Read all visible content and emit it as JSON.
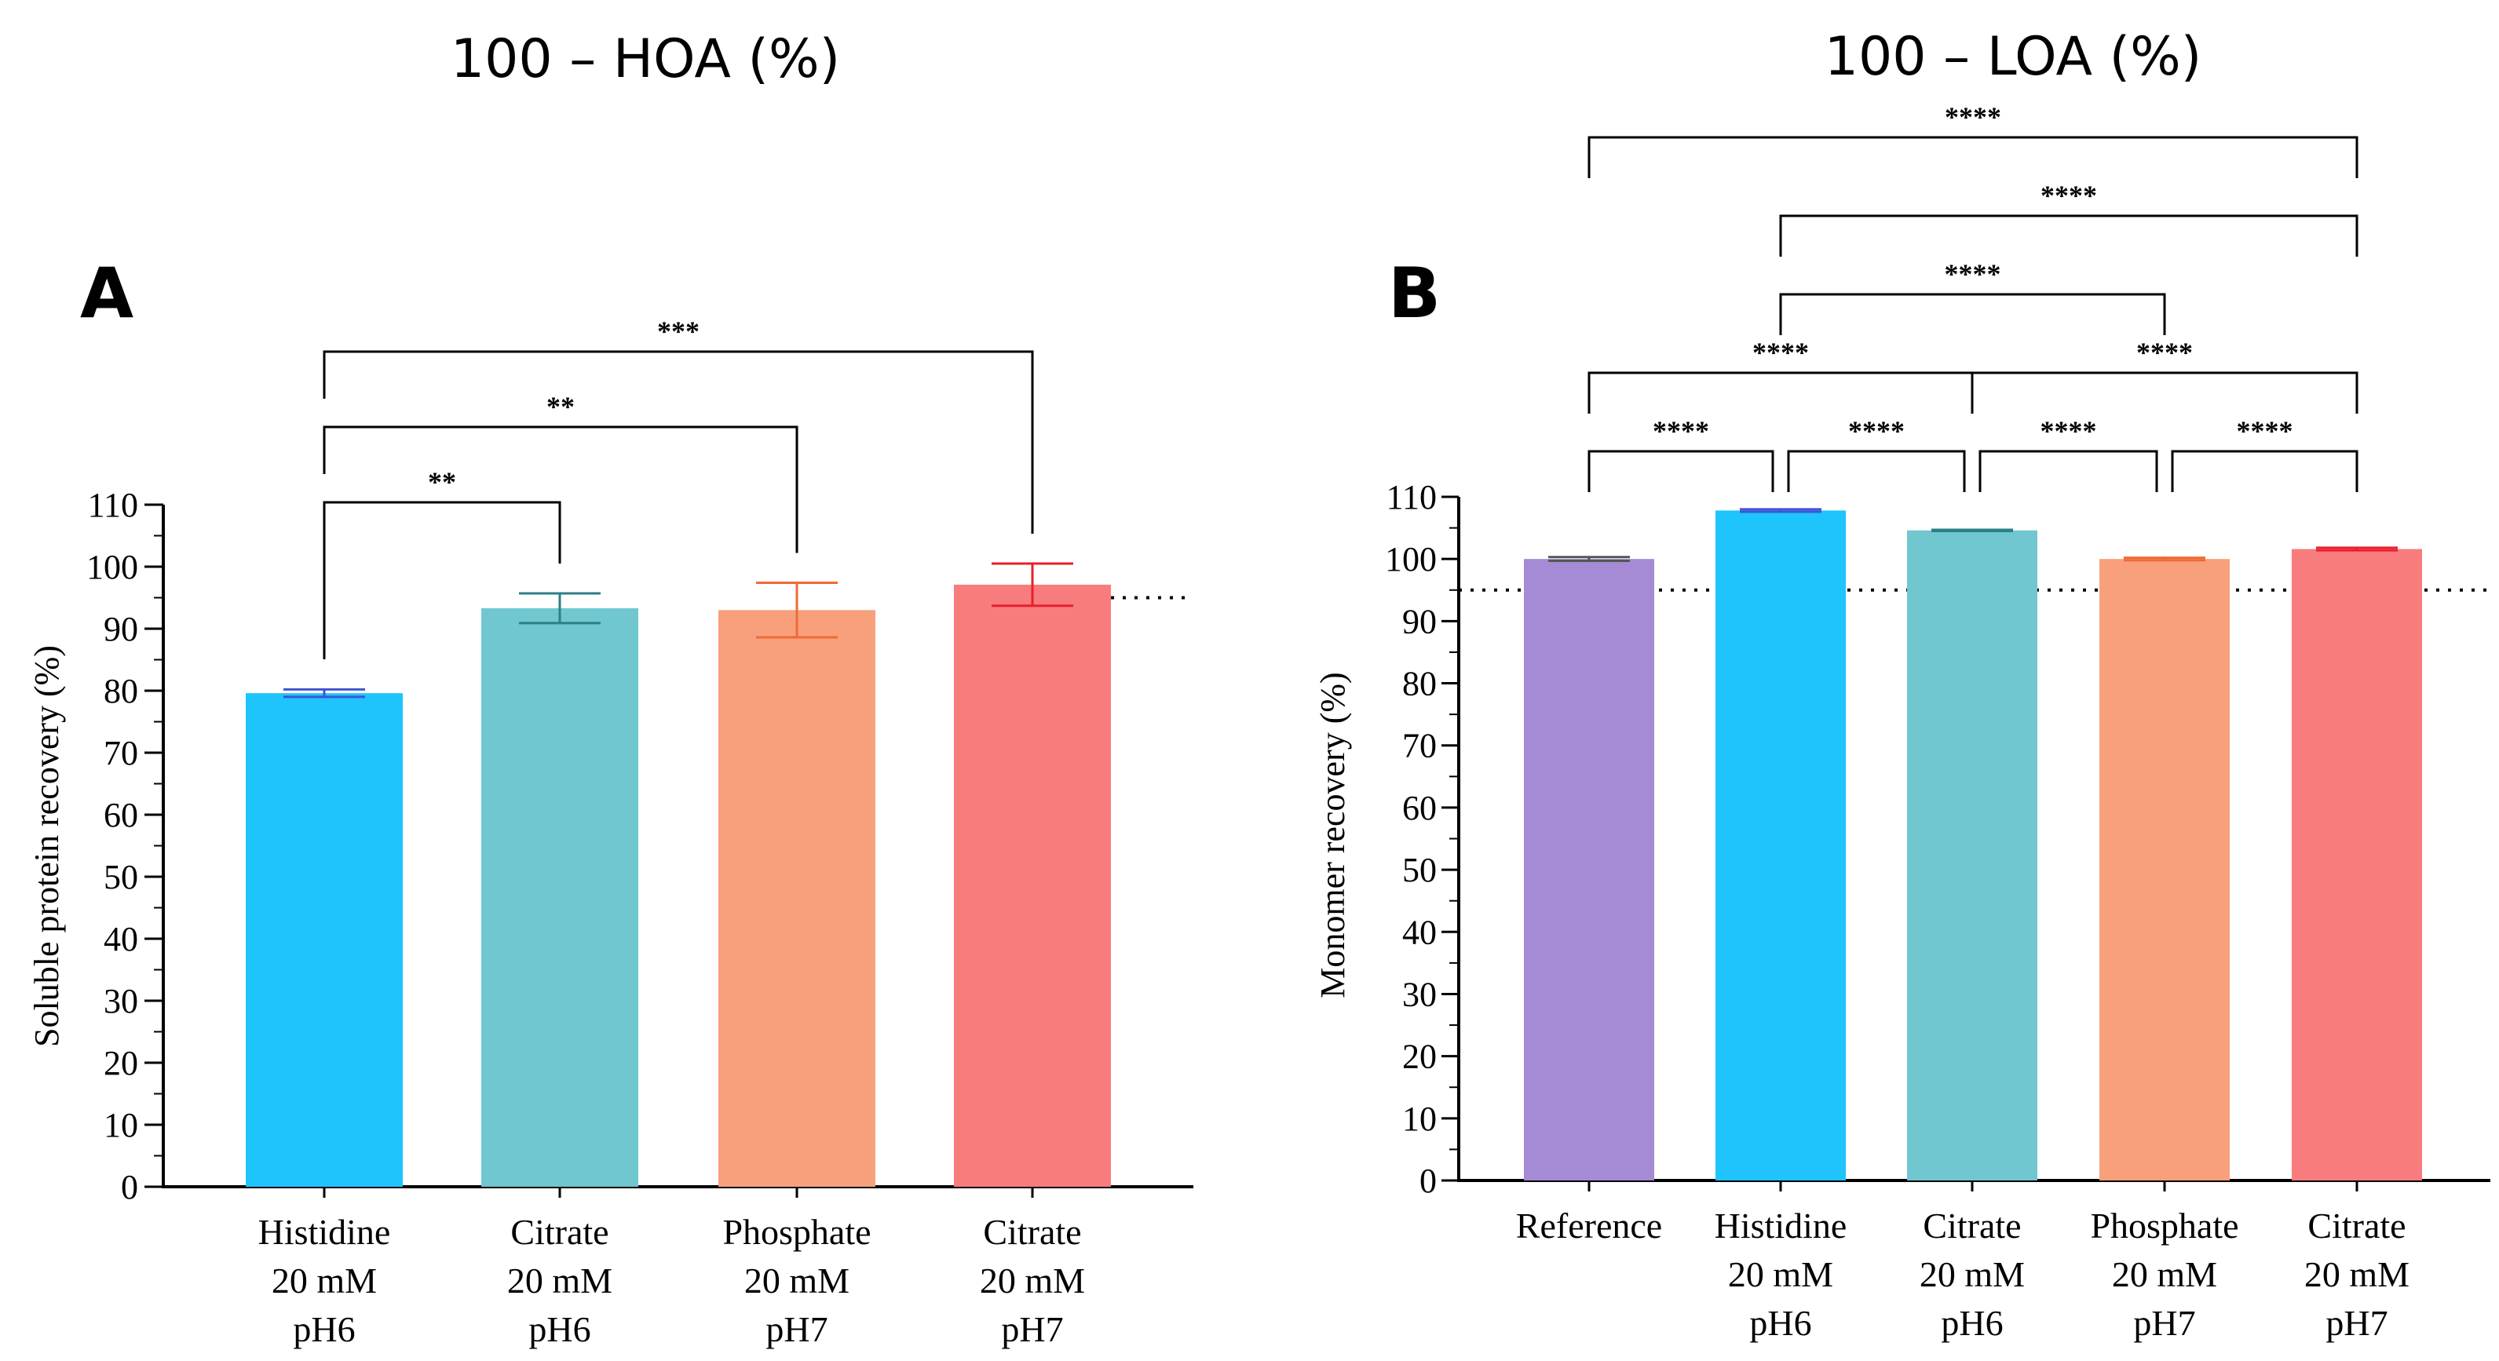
{
  "titles": [
    "100 – HOA (%)",
    "100 – LOA (%)"
  ],
  "chart_data": [
    {
      "type": "bar",
      "panel_label": "A",
      "title": "100 – HOA (%)",
      "ylabel": "Soluble protein recovery (%)",
      "ylim": [
        0,
        110
      ],
      "yticks": [
        0,
        10,
        20,
        30,
        40,
        50,
        60,
        70,
        80,
        90,
        100,
        110
      ],
      "reference_line": 95,
      "categories": [
        [
          "Histidine",
          "20 mM",
          "pH6"
        ],
        [
          "Citrate",
          "20 mM",
          "pH6"
        ],
        [
          "Phosphate",
          "20 mM",
          "pH7"
        ],
        [
          "Citrate",
          "20 mM",
          "pH7"
        ]
      ],
      "values": [
        79.6,
        93.3,
        93.0,
        97.1
      ],
      "errors": [
        0.6,
        2.4,
        4.4,
        3.4
      ],
      "colors": [
        "#1fc4fc",
        "#70c7cf",
        "#f8a07c",
        "#f87c7e"
      ],
      "error_colors": [
        "#3d54d6",
        "#2b7f86",
        "#f06a35",
        "#e81f2c"
      ],
      "significance": [
        {
          "from": 0,
          "to": 1,
          "label": "**",
          "level": 0
        },
        {
          "from": 0,
          "to": 2,
          "label": "**",
          "level": 1
        },
        {
          "from": 0,
          "to": 3,
          "label": "***",
          "level": 2
        }
      ]
    },
    {
      "type": "bar",
      "panel_label": "B",
      "title": "100 – LOA (%)",
      "ylabel": "Monomer recovery (%)",
      "ylim": [
        0,
        110
      ],
      "yticks": [
        0,
        10,
        20,
        30,
        40,
        50,
        60,
        70,
        80,
        90,
        100,
        110
      ],
      "reference_line": 95,
      "categories": [
        [
          "Reference"
        ],
        [
          "Histidine",
          "20 mM",
          "pH6"
        ],
        [
          "Citrate",
          "20 mM",
          "pH6"
        ],
        [
          "Phosphate",
          "20 mM",
          "pH7"
        ],
        [
          "Citrate",
          "20 mM",
          "pH7"
        ]
      ],
      "values": [
        100.0,
        107.8,
        104.6,
        100.0,
        101.6
      ],
      "errors": [
        0.3,
        0.2,
        0.1,
        0.2,
        0.2
      ],
      "colors": [
        "#a58ad5",
        "#1fc4fc",
        "#70c7cf",
        "#f8a07c",
        "#f87c7e"
      ],
      "error_colors": [
        "#555555",
        "#3d54d6",
        "#2b7f86",
        "#f06a35",
        "#e81f2c"
      ],
      "significance": [
        {
          "from": 0,
          "to": 1,
          "label": "****",
          "level": 0
        },
        {
          "from": 1,
          "to": 2,
          "label": "****",
          "level": 0
        },
        {
          "from": 2,
          "to": 3,
          "label": "****",
          "level": 0
        },
        {
          "from": 3,
          "to": 4,
          "label": "****",
          "level": 0
        },
        {
          "from": 0,
          "to": 2,
          "label": "****",
          "level": 1
        },
        {
          "from": 2,
          "to": 4,
          "label": "****",
          "level": 1
        },
        {
          "from": 1,
          "to": 3,
          "label": "****",
          "level": 2
        },
        {
          "from": 1,
          "to": 4,
          "label": "****",
          "level": 3
        },
        {
          "from": 0,
          "to": 4,
          "label": "****",
          "level": 4
        }
      ]
    }
  ]
}
